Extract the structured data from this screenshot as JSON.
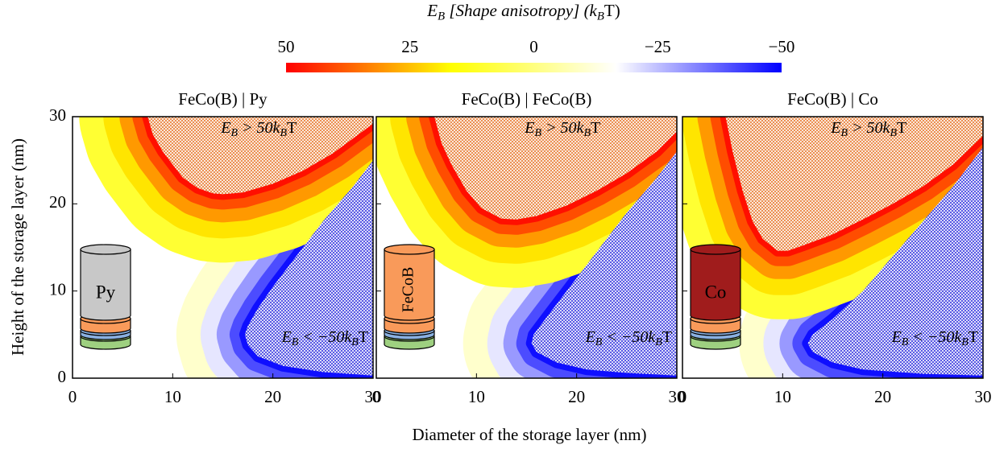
{
  "chart_data": {
    "type": "contour",
    "colorbar": {
      "title": [
        "E",
        "B",
        " [Shape anisotropy] (k",
        "B",
        "T)"
      ],
      "lim": [
        50,
        -50
      ],
      "ticks": [
        50,
        25,
        0,
        {
          "value": -25,
          "label": "−25"
        },
        {
          "value": -50,
          "label": "−50"
        }
      ],
      "colors": [
        "#ff0000",
        "#ffff00",
        "#ffffff",
        "#0000ff"
      ]
    },
    "xlabel": "Diameter of the storage layer (nm)",
    "ylabel": "Height of the storage layer (nm)",
    "xlim": [
      0,
      30
    ],
    "xticks": [
      0,
      10,
      20,
      30
    ],
    "ylim": [
      0,
      30
    ],
    "yticks": [
      0,
      10,
      20,
      30
    ],
    "hatch_colors": {
      "upper": "#e87a30",
      "lower": "#3a3ae0"
    },
    "panels": [
      {
        "title": "FeCo(B) | Py",
        "layer_label": "Py",
        "layer_color": "#c8c8c8",
        "upper_label": [
          "E",
          "B",
          " > 50k",
          "B",
          "T"
        ],
        "lower_label": [
          "E",
          "B",
          " < −50k",
          "B",
          "T"
        ],
        "upper_boundary": {
          "x": [
            7.5,
            8,
            9,
            10,
            11,
            12.5,
            14,
            15,
            17,
            20,
            23,
            26,
            28,
            30
          ],
          "y": [
            30,
            28,
            26,
            24.5,
            23,
            21.8,
            21.2,
            21.1,
            21.3,
            22.3,
            23.8,
            25.8,
            27.5,
            29.2
          ]
        },
        "lower_boundary": {
          "x": [
            30,
            28,
            25,
            22,
            20,
            18.5,
            17.5,
            17.2,
            17.5,
            18.5,
            21,
            25,
            30
          ],
          "y": [
            25,
            22,
            18,
            13.5,
            10.5,
            8,
            6,
            5,
            3.8,
            2.5,
            1.4,
            0.7,
            0.3
          ]
        }
      },
      {
        "title": "FeCo(B) | FeCo(B)",
        "layer_label": "FeCoB",
        "layer_color": "#f99a5a",
        "upper_label": [
          "E",
          "B",
          " > 50k",
          "B",
          "T"
        ],
        "lower_label": [
          "E",
          "B",
          " < −50k",
          "B",
          "T"
        ],
        "upper_boundary": {
          "x": [
            5.8,
            6.5,
            7.5,
            9,
            10.5,
            12.5,
            14,
            16,
            19,
            22,
            25,
            28,
            30
          ],
          "y": [
            30,
            27,
            24.5,
            21.5,
            19.5,
            18.3,
            18.2,
            18.6,
            19.8,
            21.5,
            23.5,
            26,
            28.3
          ]
        },
        "lower_boundary": {
          "x": [
            30,
            28,
            25,
            22,
            19,
            17,
            15.7,
            15.5,
            16,
            18,
            21,
            25,
            30
          ],
          "y": [
            26,
            23,
            19,
            14.5,
            10,
            7,
            5,
            4,
            3,
            1.8,
            1,
            0.6,
            0.3
          ]
        }
      },
      {
        "title": "FeCo(B) | Co",
        "layer_label": "Co",
        "layer_color": "#a01c1c",
        "upper_label": [
          "E",
          "B",
          " > 50k",
          "B",
          "T"
        ],
        "lower_label": [
          "E",
          "B",
          " < −50k",
          "B",
          "T"
        ],
        "upper_boundary": {
          "x": [
            4.3,
            5,
            6,
            7,
            8,
            9.5,
            10.5,
            12,
            15,
            18,
            21,
            24,
            27,
            30
          ],
          "y": [
            30,
            26,
            21.5,
            18,
            16,
            14.6,
            14.6,
            15.2,
            16.5,
            18.2,
            20,
            22,
            24.5,
            27.8
          ]
        },
        "lower_boundary": {
          "x": [
            30,
            27,
            24,
            21,
            18,
            15,
            13,
            12.5,
            13,
            15,
            18,
            24,
            30
          ],
          "y": [
            26.5,
            22,
            18,
            14,
            10,
            6.8,
            5,
            4,
            3,
            1.8,
            1,
            0.5,
            0.3
          ]
        }
      }
    ]
  }
}
